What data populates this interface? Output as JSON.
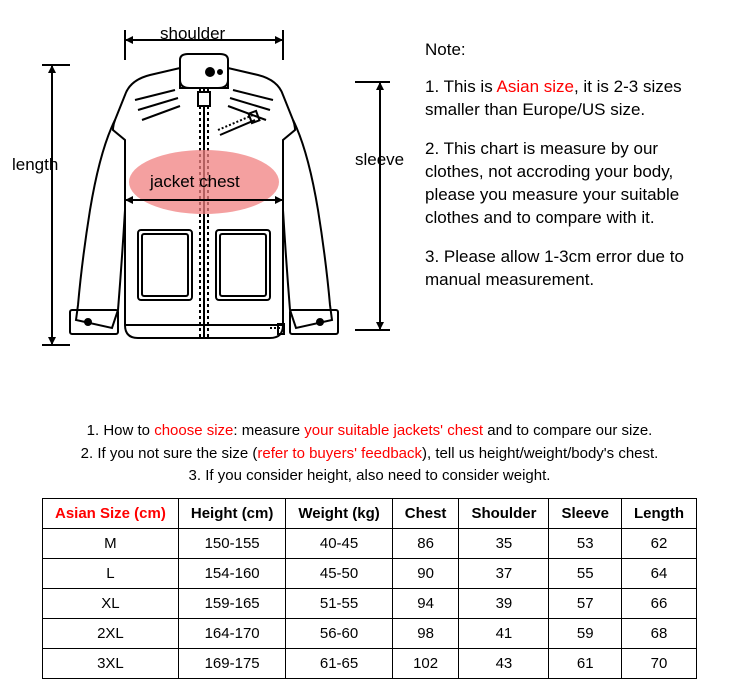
{
  "diagram": {
    "labels": {
      "shoulder": "shoulder",
      "length": "length",
      "sleeve": "sleeve",
      "chest": "jacket chest"
    },
    "chest_circle_color": "#f08080",
    "chest_circle_opacity": 0.75,
    "line_color": "#000000"
  },
  "notes": {
    "heading": "Note:",
    "n1_prefix": "1. This is ",
    "n1_red": "Asian size",
    "n1_suffix": ", it is 2-3 sizes smaller than Europe/US size.",
    "n2": "2. This chart is measure by our clothes, not accroding your body, please you measure your suitable clothes and to compare with it.",
    "n3": "3. Please allow 1-3cm error due to manual measurement."
  },
  "instructions": {
    "l1_a": "1. How to ",
    "l1_red1": "choose size",
    "l1_b": ": measure ",
    "l1_red2": "your suitable jackets' chest",
    "l1_c": " and to compare our size.",
    "l2_a": "2. If you not sure the size (",
    "l2_red": "refer to buyers' feedback",
    "l2_b": "), tell us height/weight/body's chest.",
    "l3": "3. If you consider height, also need to consider weight."
  },
  "table": {
    "columns": [
      "Asian Size (cm)",
      "Height (cm)",
      "Weight (kg)",
      "Chest",
      "Shoulder",
      "Sleeve",
      "Length"
    ],
    "rows": [
      [
        "M",
        "150-155",
        "40-45",
        "86",
        "35",
        "53",
        "62"
      ],
      [
        "L",
        "154-160",
        "45-50",
        "90",
        "37",
        "55",
        "64"
      ],
      [
        "XL",
        "159-165",
        "51-55",
        "94",
        "39",
        "57",
        "66"
      ],
      [
        "2XL",
        "164-170",
        "56-60",
        "98",
        "41",
        "59",
        "68"
      ],
      [
        "3XL",
        "169-175",
        "61-65",
        "102",
        "43",
        "61",
        "70"
      ]
    ]
  },
  "colors": {
    "red": "#ff0000",
    "black": "#000000",
    "background": "#ffffff"
  }
}
